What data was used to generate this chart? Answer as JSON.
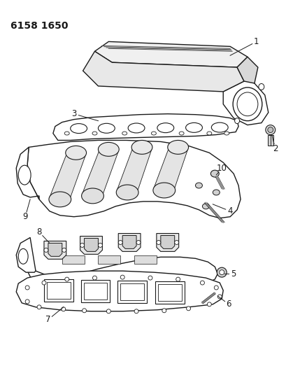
{
  "title": "6158 1650",
  "bg_color": "#ffffff",
  "line_color": "#1a1a1a",
  "title_fontsize": 10,
  "label_fontsize": 8.5
}
